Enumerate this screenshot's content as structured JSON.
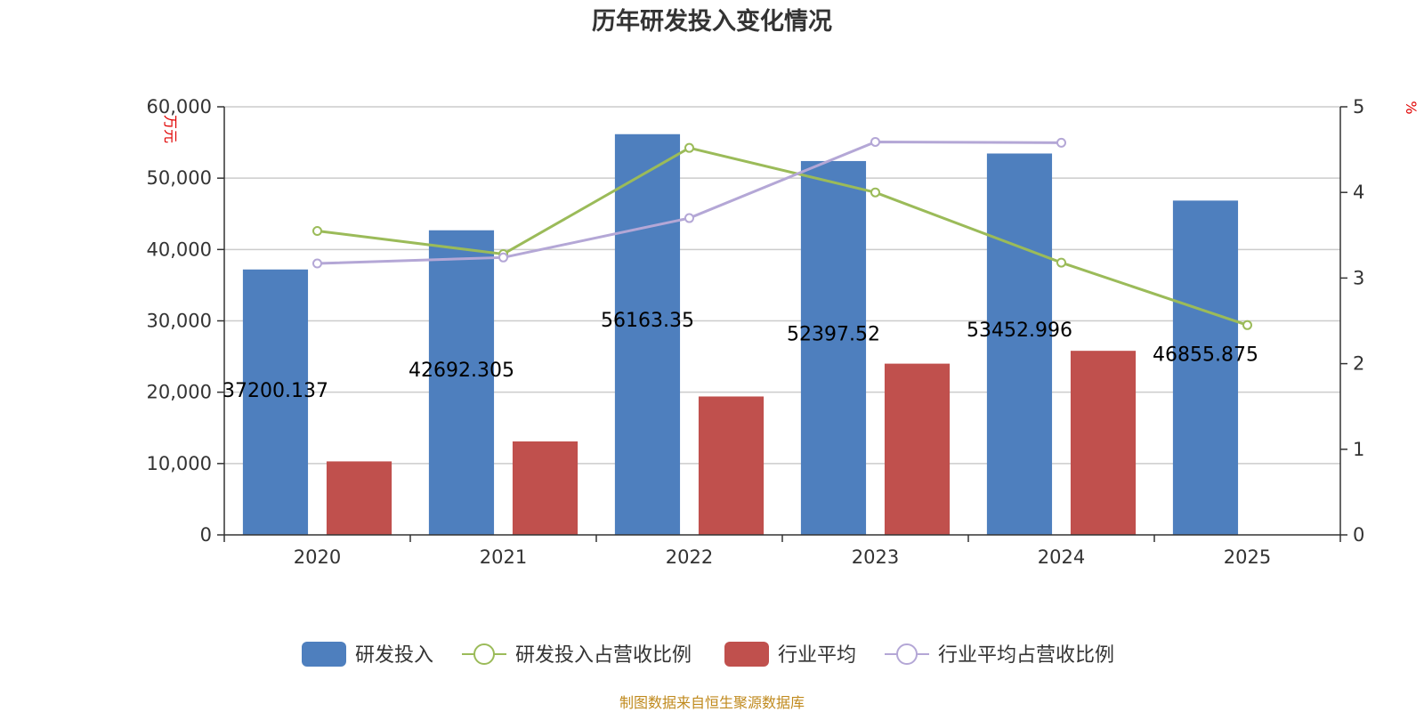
{
  "chart_data": {
    "type": "bar",
    "title": "历年研发投入变化情况",
    "categories": [
      "2020",
      "2021",
      "2022",
      "2023",
      "2024",
      "2025"
    ],
    "series": [
      {
        "name": "研发投入",
        "kind": "bar",
        "axis": "left",
        "color": "#4e7fbe",
        "values": [
          37200.137,
          42692.305,
          56163.35,
          52397.52,
          53452.996,
          46855.875
        ],
        "labels": [
          "37200.137",
          "42692.305",
          "56163.35",
          "52397.52",
          "53452.996",
          "46855.875"
        ]
      },
      {
        "name": "研发投入占营收比例",
        "kind": "line",
        "axis": "right",
        "color": "#9bbb59",
        "values": [
          3.55,
          3.28,
          4.52,
          4.0,
          3.18,
          2.45
        ]
      },
      {
        "name": "行业平均",
        "kind": "bar",
        "axis": "left",
        "color": "#c0504d",
        "values": [
          10300,
          13100,
          19400,
          24000,
          25800,
          null
        ]
      },
      {
        "name": "行业平均占营收比例",
        "kind": "line",
        "axis": "right",
        "color": "#b4a7d6",
        "values": [
          3.17,
          3.24,
          3.7,
          4.59,
          4.58,
          null
        ]
      }
    ],
    "y_left": {
      "unit": "万元",
      "ylim": [
        0,
        60000
      ],
      "ticks": [
        0,
        10000,
        20000,
        30000,
        40000,
        50000,
        60000
      ],
      "tick_labels": [
        "0",
        "10,000",
        "20,000",
        "30,000",
        "40,000",
        "50,000",
        "60,000"
      ]
    },
    "y_right": {
      "unit": "%",
      "ylim": [
        0,
        5
      ],
      "ticks": [
        0,
        1,
        2,
        3,
        4,
        5
      ],
      "tick_labels": [
        "0",
        "1",
        "2",
        "3",
        "4",
        "5"
      ]
    },
    "grid": true,
    "legend_position": "bottom"
  },
  "source_note": "制图数据来自恒生聚源数据库"
}
